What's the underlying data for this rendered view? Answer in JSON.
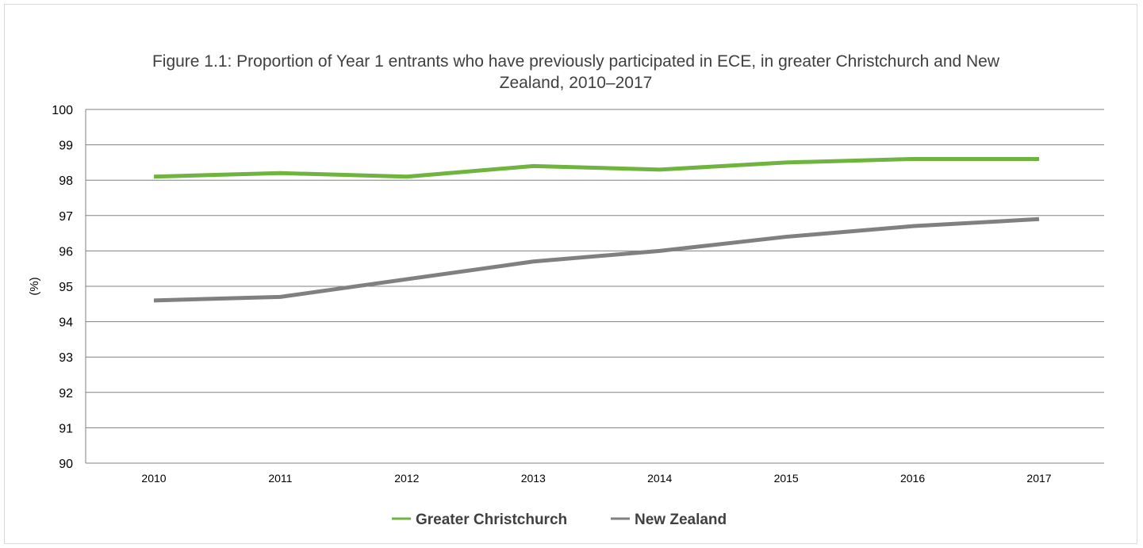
{
  "chart_data": {
    "type": "line",
    "title_line1": "Figure 1.1: Proportion of Year 1 entrants who have previously participated in ECE, in greater Christchurch and New",
    "title_line2": "Zealand, 2010–2017",
    "ylabel": "(%)",
    "xlabel": "",
    "categories": [
      "2010",
      "2011",
      "2012",
      "2013",
      "2014",
      "2015",
      "2016",
      "2017"
    ],
    "ylim": [
      90,
      100
    ],
    "yticks": [
      "90",
      "91",
      "92",
      "93",
      "94",
      "95",
      "96",
      "97",
      "98",
      "99",
      "100"
    ],
    "grid": true,
    "legend_position": "bottom-center",
    "series": [
      {
        "name": "Greater Christchurch",
        "color": "#6fb43f",
        "values": [
          98.1,
          98.2,
          98.1,
          98.4,
          98.3,
          98.5,
          98.6,
          98.6
        ]
      },
      {
        "name": "New Zealand",
        "color": "#808080",
        "values": [
          94.6,
          94.7,
          95.2,
          95.7,
          96.0,
          96.4,
          96.7,
          96.9
        ]
      }
    ]
  }
}
